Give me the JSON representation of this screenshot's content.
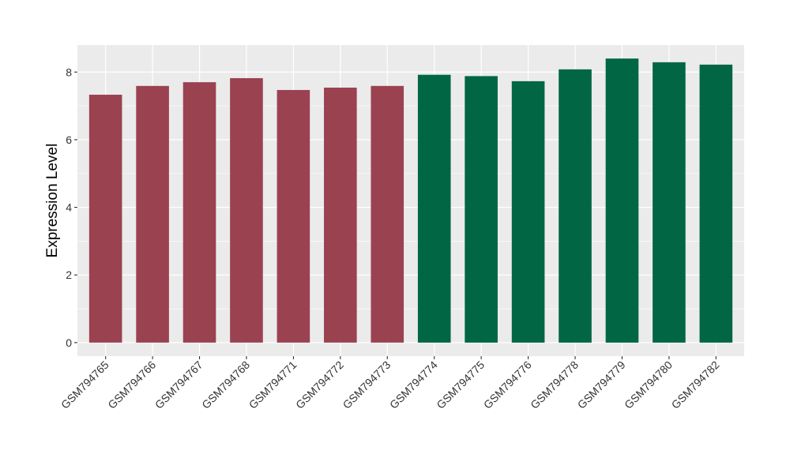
{
  "chart_data": {
    "type": "bar",
    "title": "",
    "xlabel": "",
    "ylabel": "Expression Level",
    "ylim": [
      -0.4,
      8.8
    ],
    "yticks": [
      0,
      2,
      4,
      6,
      8
    ],
    "grid": true,
    "legend": "none",
    "categories": [
      "GSM794765",
      "GSM794766",
      "GSM794767",
      "GSM794768",
      "GSM794771",
      "GSM794772",
      "GSM794773",
      "GSM794774",
      "GSM794775",
      "GSM794776",
      "GSM794778",
      "GSM794779",
      "GSM794780",
      "GSM794782"
    ],
    "values": [
      7.33,
      7.59,
      7.7,
      7.82,
      7.47,
      7.54,
      7.59,
      7.92,
      7.88,
      7.73,
      8.08,
      8.4,
      8.29,
      8.22
    ],
    "group_colors": [
      "#9a4250",
      "#9a4250",
      "#9a4250",
      "#9a4250",
      "#9a4250",
      "#9a4250",
      "#9a4250",
      "#006644",
      "#006644",
      "#006644",
      "#006644",
      "#006644",
      "#006644",
      "#006644"
    ],
    "panel_background": "#ebebeb",
    "grid_color": "#ffffff"
  }
}
